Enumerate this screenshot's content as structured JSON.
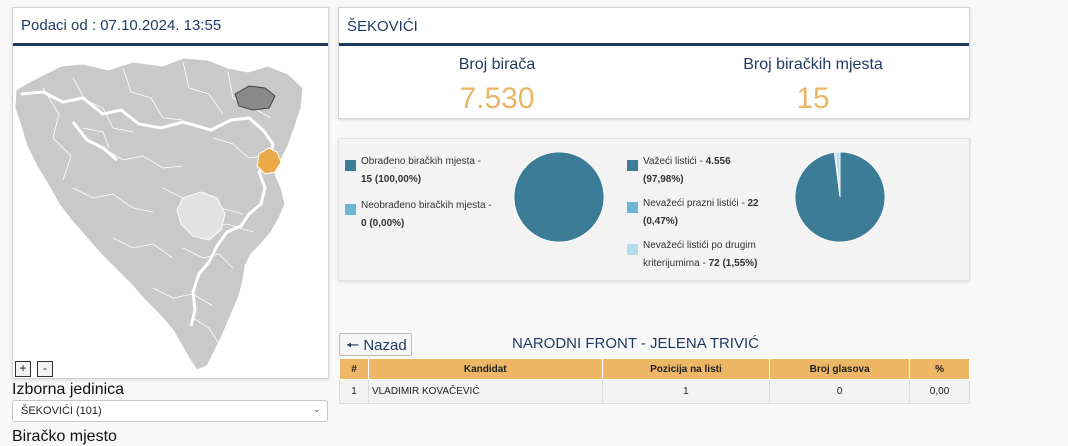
{
  "map": {
    "header_text": "Podaci od : 07.10.2024. 13:55",
    "zoom_in": "+",
    "zoom_out": "-"
  },
  "electoral_unit": {
    "label": "Izborna jedinica",
    "selected": "ŠEKOVIĆI (101)"
  },
  "polling_station_label": "Biračko mjesto",
  "municipality": {
    "name": "ŠEKOVIĆI",
    "voters_label": "Broj birača",
    "voters_value": "7.530",
    "stations_label": "Broj biračkih mjesta",
    "stations_value": "15"
  },
  "processing": {
    "processed_label": "Obrađeno biračkih mjesta -",
    "processed_value": "15 (100,00%)",
    "unprocessed_label": "Neobrađeno biračkih mjesta -",
    "unprocessed_value": "0 (0,00%)"
  },
  "ballots": {
    "valid_label": "Važeći listići -",
    "valid_value": "4.556",
    "valid_pct": "(97,98%)",
    "blank_label": "Nevažeći prazni listići -",
    "blank_value": "22",
    "blank_pct": "(0,47%)",
    "other_label": "Nevažeći listići po drugim",
    "other_label_2": "kriterijumima -",
    "other_value": "72 (1,55%)"
  },
  "chart_data": [
    {
      "type": "pie",
      "slices": [
        {
          "label": "Obrađeno biračkih mjesta",
          "value": 15,
          "color": "#3d7c96"
        },
        {
          "label": "Neobrađeno biračkih mjesta",
          "value": 0,
          "color": "#6cb6d4"
        }
      ]
    },
    {
      "type": "pie",
      "slices": [
        {
          "label": "Važeći listići",
          "value": 4556,
          "color": "#3d7c96"
        },
        {
          "label": "Nevažeći prazni listići",
          "value": 22,
          "color": "#6cb6d4"
        },
        {
          "label": "Nevažeći listići po drugim kriterijumima",
          "value": 72,
          "color": "#b5dced"
        }
      ]
    }
  ],
  "colors": {
    "primary_navy": "#1f3a5f",
    "accent_orange": "#eab565",
    "table_header": "#edb766",
    "pie_main": "#3d7c96"
  },
  "results": {
    "back_label": "Nazad",
    "back_icon": "arrow-left-icon",
    "party_title": "NARODNI FRONT - JELENA TRIVIĆ",
    "columns": [
      "#",
      "Kandidat",
      "Pozicija na listi",
      "Broj glasova",
      "%"
    ],
    "rows": [
      [
        "1",
        "VLADIMIR KOVAČEVIĆ",
        "1",
        "0",
        "0,00"
      ]
    ]
  }
}
